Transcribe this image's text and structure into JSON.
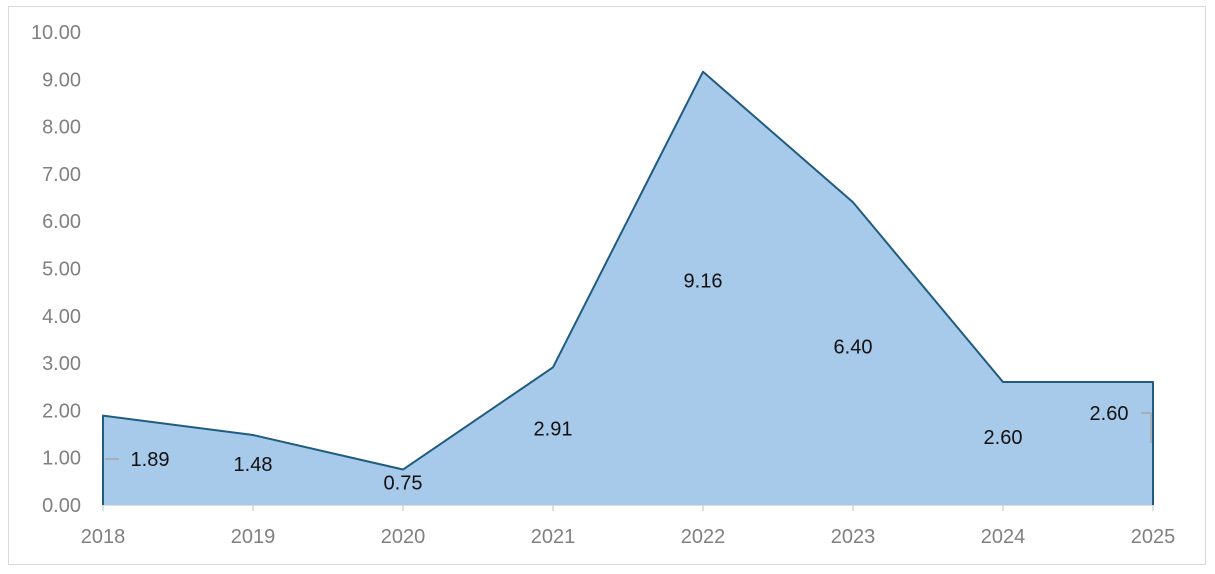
{
  "chart_data": {
    "type": "area",
    "title": "",
    "xlabel": "",
    "ylabel": "",
    "categories": [
      "2018",
      "2019",
      "2020",
      "2021",
      "2022",
      "2023",
      "2024",
      "2025"
    ],
    "series": [
      {
        "values": [
          1.89,
          1.48,
          0.75,
          2.91,
          9.16,
          6.4,
          2.6,
          2.6
        ],
        "data_labels": [
          "1.89",
          "1.48",
          "0.75",
          "2.91",
          "9.16",
          "6.40",
          "2.60",
          "2.60"
        ]
      }
    ],
    "ylim": [
      0,
      10
    ],
    "yticks": [
      "0.00",
      "1.00",
      "2.00",
      "3.00",
      "4.00",
      "5.00",
      "6.00",
      "7.00",
      "8.00",
      "9.00",
      "10.00"
    ],
    "grid": false,
    "legend": "none",
    "colors": {
      "fill": "#a7c9ea",
      "line": "#1f5c80",
      "axis": "#bfbfbf",
      "tick_text": "#808080",
      "label_text": "#111111",
      "leader": "#a6a6a6"
    }
  }
}
